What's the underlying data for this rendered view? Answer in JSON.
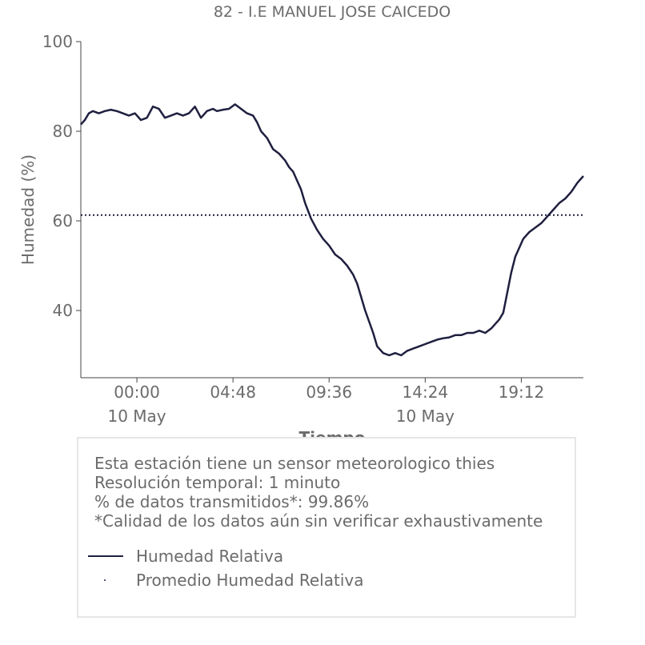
{
  "chart_data": {
    "type": "line",
    "title": "82 - I.E MANUEL JOSE CAICEDO",
    "xlabel": "Tiempo",
    "ylabel": "Humedad (%)",
    "ylim": [
      25,
      100
    ],
    "y_ticks": [
      40,
      60,
      80,
      100
    ],
    "x_range_hours": [
      -2.8,
      22.3
    ],
    "x_ticks": [
      {
        "hour": 0,
        "label": "00:00",
        "sublabel": "10 May"
      },
      {
        "hour": 4.8,
        "label": "04:48",
        "sublabel": ""
      },
      {
        "hour": 9.6,
        "label": "09:36",
        "sublabel": ""
      },
      {
        "hour": 14.4,
        "label": "14:24",
        "sublabel": "10 May"
      },
      {
        "hour": 19.2,
        "label": "19:12",
        "sublabel": ""
      }
    ],
    "grid": false,
    "series": [
      {
        "name": "Humedad Relativa",
        "color": "#1f1f3f",
        "x": [
          -2.8,
          -2.6,
          -2.4,
          -2.2,
          -1.9,
          -1.6,
          -1.3,
          -1.0,
          -0.7,
          -0.4,
          -0.1,
          0.2,
          0.5,
          0.8,
          1.1,
          1.4,
          1.7,
          2.0,
          2.3,
          2.6,
          2.9,
          3.2,
          3.5,
          3.8,
          4.0,
          4.3,
          4.6,
          4.9,
          5.2,
          5.5,
          5.8,
          6.0,
          6.2,
          6.5,
          6.8,
          7.1,
          7.4,
          7.6,
          7.8,
          8.0,
          8.2,
          8.4,
          8.7,
          9.0,
          9.3,
          9.6,
          9.9,
          10.2,
          10.5,
          10.8,
          11.0,
          11.2,
          11.4,
          11.6,
          11.8,
          12.0,
          12.3,
          12.6,
          12.9,
          13.2,
          13.5,
          13.8,
          14.1,
          14.4,
          14.7,
          15.0,
          15.3,
          15.6,
          15.9,
          16.2,
          16.5,
          16.8,
          17.1,
          17.4,
          17.7,
          17.9,
          18.1,
          18.3,
          18.5,
          18.7,
          18.9,
          19.1,
          19.3,
          19.6,
          19.9,
          20.2,
          20.5,
          20.8,
          21.1,
          21.4,
          21.7,
          22.0,
          22.3
        ],
        "values": [
          81.5,
          82.5,
          84.0,
          84.5,
          84.0,
          84.5,
          84.8,
          84.5,
          84.0,
          83.5,
          84.0,
          82.5,
          83.0,
          85.5,
          85.0,
          83.0,
          83.5,
          84.0,
          83.5,
          84.0,
          85.5,
          83.0,
          84.5,
          85.0,
          84.5,
          84.8,
          85.0,
          86.0,
          85.0,
          84.0,
          83.5,
          82.0,
          80.0,
          78.5,
          76.0,
          75.0,
          73.5,
          72.0,
          71.0,
          69.0,
          67.0,
          64.0,
          60.5,
          58.0,
          56.0,
          54.5,
          52.5,
          51.5,
          50.0,
          48.0,
          46.0,
          43.0,
          40.0,
          37.5,
          35.0,
          32.0,
          30.5,
          30.0,
          30.5,
          30.0,
          31.0,
          31.5,
          32.0,
          32.5,
          33.0,
          33.5,
          33.8,
          34.0,
          34.5,
          34.5,
          35.0,
          35.0,
          35.5,
          35.0,
          36.0,
          37.0,
          38.0,
          39.5,
          44.0,
          48.5,
          52.0,
          54.0,
          56.0,
          57.5,
          58.5,
          59.5,
          61.0,
          62.5,
          64.0,
          65.0,
          66.5,
          68.5,
          70.0
        ]
      },
      {
        "name": "Promedio Humedad Relativa",
        "color": "#1f1f3f",
        "style": "dotted",
        "values": [
          61.3
        ]
      }
    ]
  },
  "info": {
    "line1": "Esta estación tiene un sensor meteorologico thies",
    "line2": "Resolución temporal: 1 minuto",
    "line3": "% de datos transmitidos*: 99.86%",
    "line4": "*Calidad de los datos aún sin verificar exhaustivamente"
  },
  "legend": {
    "items": [
      {
        "label": "Humedad Relativa",
        "marker": "line",
        "color": "#1f1f3f"
      },
      {
        "label": "Promedio Humedad Relativa",
        "marker": "dot",
        "color": "#1f1f3f"
      }
    ]
  }
}
